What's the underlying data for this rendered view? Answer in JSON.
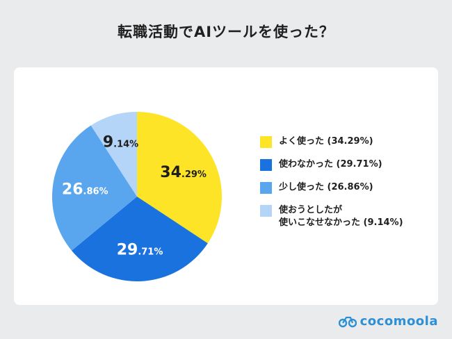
{
  "title": "転職活動でAIツールを使った？",
  "brand": "cocomoola",
  "colors": {
    "background": "#eaebed",
    "card": "#ffffff",
    "text": "#1f1f1f",
    "brand": "#2d8fd5"
  },
  "chart_data": {
    "type": "pie",
    "title": "転職活動でAIツールを使った？",
    "unit": "%",
    "start_angle_deg": 0,
    "direction": "clockwise",
    "label_percent_sign": "%",
    "slices": [
      {
        "legend": "よく使った (34.29%)",
        "value": 34.29,
        "label_int": "34",
        "label_dec": ".29",
        "color": "#fde426",
        "label_color": "#1f1f1f"
      },
      {
        "legend": "使わなかった (29.71%)",
        "value": 29.71,
        "label_int": "29",
        "label_dec": ".71",
        "color": "#1a72df",
        "label_color": "#ffffff"
      },
      {
        "legend": "少し使った (26.86%)",
        "value": 26.86,
        "label_int": "26",
        "label_dec": ".86",
        "color": "#5aa6ee",
        "label_color": "#ffffff"
      },
      {
        "legend": "使おうとしたが\n使いこなせなかった (9.14%)",
        "value": 9.14,
        "label_int": "9",
        "label_dec": ".14",
        "color": "#b4d5f8",
        "label_color": "#1f1f1f"
      }
    ]
  }
}
